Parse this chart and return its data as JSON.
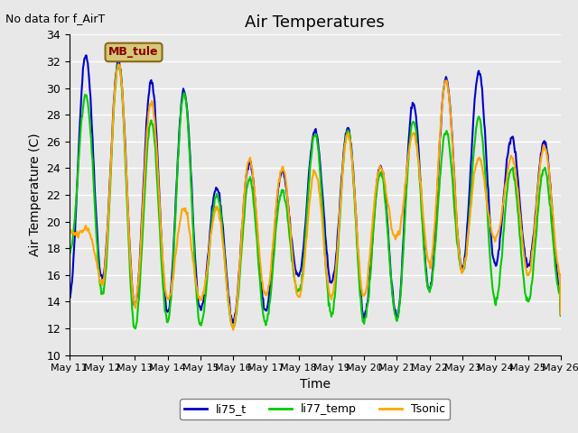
{
  "title": "Air Temperatures",
  "no_data_text": "No data for f_AirT",
  "xlabel": "Time",
  "ylabel": "Air Temperature (C)",
  "ylim": [
    10,
    34
  ],
  "yticks": [
    10,
    12,
    14,
    16,
    18,
    20,
    22,
    24,
    26,
    28,
    30,
    32,
    34
  ],
  "background_color": "#e8e8e8",
  "axes_bg_color": "#e8e8e8",
  "legend_label": "MB_tule",
  "legend_box_color": "#d4c87a",
  "legend_text_color": "#8b0000",
  "series": {
    "li75_t": {
      "color": "#0000cc",
      "linewidth": 1.5
    },
    "li77_temp": {
      "color": "#00cc00",
      "linewidth": 1.5
    },
    "Tsonic": {
      "color": "#ffa500",
      "linewidth": 1.5
    }
  },
  "xtick_days": [
    11,
    12,
    13,
    14,
    15,
    16,
    17,
    18,
    19,
    20,
    21,
    22,
    23,
    24,
    25,
    26
  ],
  "li75_peaks": [
    32.5,
    32.0,
    30.5,
    29.8,
    22.5,
    24.5,
    23.7,
    26.8,
    27.0,
    24.2,
    28.9,
    30.7,
    31.2,
    26.3,
    26.0,
    26.6
  ],
  "li75_troughs": [
    14.2,
    15.8,
    13.8,
    13.2,
    13.5,
    12.5,
    13.3,
    16.0,
    15.5,
    12.9,
    12.8,
    15.0,
    16.5,
    16.7,
    16.8,
    14.5,
    13.0
  ],
  "li77_peaks": [
    29.5,
    31.8,
    27.5,
    29.5,
    22.0,
    23.2,
    22.3,
    26.5,
    26.8,
    23.7,
    27.5,
    26.7,
    27.8,
    24.0,
    23.9,
    23.2
  ],
  "li77_troughs": [
    17.8,
    14.5,
    11.9,
    12.5,
    12.2,
    12.0,
    12.3,
    14.8,
    13.0,
    12.5,
    12.6,
    14.9,
    16.3,
    14.0,
    14.0,
    14.4,
    12.8
  ],
  "tsonic_peaks": [
    19.5,
    31.8,
    29.0,
    21.0,
    21.0,
    24.6,
    24.0,
    23.8,
    26.5,
    24.0,
    26.6,
    30.5,
    24.8,
    24.8,
    25.6,
    24.3
  ],
  "tsonic_troughs": [
    19.5,
    15.3,
    13.8,
    14.2,
    14.2,
    12.0,
    14.5,
    14.4,
    14.3,
    14.3,
    19.0,
    16.8,
    16.3,
    18.8,
    16.0,
    16.0,
    13.0
  ]
}
